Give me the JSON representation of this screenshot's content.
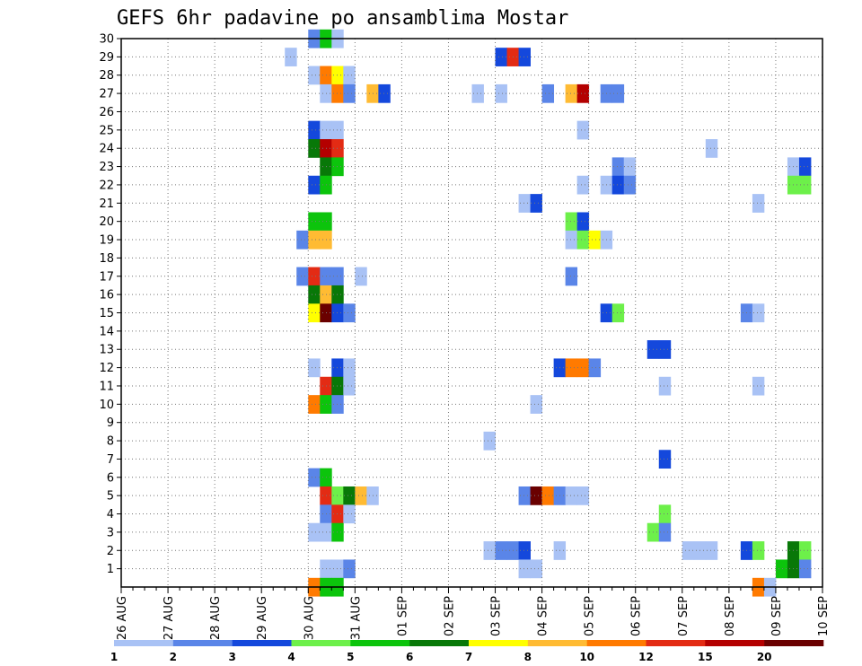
{
  "chart_data": {
    "type": "heatmap",
    "title": "GEFS 6hr padavine po ansamblima Mostar",
    "xlabel": "",
    "ylabel": "",
    "x_ticks": [
      "26 AUG",
      "27 AUG",
      "28 AUG",
      "29 AUG",
      "30 AUG",
      "31 AUG",
      "01 SEP",
      "02 SEP",
      "03 SEP",
      "04 SEP",
      "05 SEP",
      "06 SEP",
      "07 SEP",
      "08 SEP",
      "09 SEP",
      "10 SEP"
    ],
    "x_range": [
      "26 AUG 00Z",
      "10 SEP 00Z"
    ],
    "time_step_hours": 6,
    "y_ticks": [
      1,
      2,
      3,
      4,
      5,
      6,
      7,
      8,
      9,
      10,
      11,
      12,
      13,
      14,
      15,
      16,
      17,
      18,
      19,
      20,
      21,
      22,
      23,
      24,
      25,
      26,
      27,
      28,
      29,
      30
    ],
    "y_range": [
      0,
      30
    ],
    "grid": true,
    "legend_position": "bottom",
    "legend": {
      "labels": [
        "1",
        "2",
        "3",
        "4",
        "5",
        "6",
        "7",
        "8",
        "10",
        "12",
        "15",
        "20"
      ],
      "colors": [
        "#a9c2f5",
        "#5a85e8",
        "#1448dc",
        "#6df04a",
        "#0cc40c",
        "#087808",
        "#ffff00",
        "#ffbb33",
        "#ff7a00",
        "#e32b14",
        "#b40000",
        "#6a0000"
      ]
    },
    "cells": [
      [
        30,
        16,
        1
      ],
      [
        30,
        17,
        4
      ],
      [
        30,
        18,
        0
      ],
      [
        29,
        14,
        0
      ],
      [
        29,
        32,
        2
      ],
      [
        29,
        33,
        9
      ],
      [
        29,
        34,
        2
      ],
      [
        28,
        16,
        0
      ],
      [
        28,
        17,
        8
      ],
      [
        28,
        18,
        6
      ],
      [
        28,
        19,
        0
      ],
      [
        27,
        17,
        0
      ],
      [
        27,
        18,
        8
      ],
      [
        27,
        19,
        1
      ],
      [
        27,
        21,
        7
      ],
      [
        27,
        22,
        2
      ],
      [
        27,
        30,
        0
      ],
      [
        27,
        32,
        0
      ],
      [
        27,
        36,
        1
      ],
      [
        27,
        38,
        7
      ],
      [
        27,
        39,
        10
      ],
      [
        27,
        41,
        1
      ],
      [
        27,
        42,
        1
      ],
      [
        25,
        16,
        2
      ],
      [
        25,
        17,
        0
      ],
      [
        25,
        18,
        0
      ],
      [
        25,
        39,
        0
      ],
      [
        24,
        16,
        5
      ],
      [
        24,
        17,
        10
      ],
      [
        24,
        18,
        9
      ],
      [
        24,
        50,
        0
      ],
      [
        23,
        17,
        5
      ],
      [
        23,
        18,
        4
      ],
      [
        23,
        42,
        1
      ],
      [
        23,
        43,
        0
      ],
      [
        23,
        57,
        0
      ],
      [
        23,
        58,
        2
      ],
      [
        22,
        16,
        2
      ],
      [
        22,
        17,
        4
      ],
      [
        22,
        39,
        0
      ],
      [
        22,
        41,
        0
      ],
      [
        22,
        42,
        2
      ],
      [
        22,
        43,
        1
      ],
      [
        22,
        57,
        3
      ],
      [
        22,
        58,
        3
      ],
      [
        21,
        34,
        0
      ],
      [
        21,
        35,
        2
      ],
      [
        21,
        54,
        0
      ],
      [
        20,
        16,
        4
      ],
      [
        20,
        17,
        4
      ],
      [
        20,
        38,
        3
      ],
      [
        20,
        39,
        2
      ],
      [
        19,
        15,
        1
      ],
      [
        19,
        16,
        7
      ],
      [
        19,
        17,
        7
      ],
      [
        19,
        38,
        0
      ],
      [
        19,
        39,
        3
      ],
      [
        19,
        40,
        6
      ],
      [
        19,
        41,
        0
      ],
      [
        17,
        15,
        1
      ],
      [
        17,
        16,
        9
      ],
      [
        17,
        17,
        1
      ],
      [
        17,
        18,
        1
      ],
      [
        17,
        20,
        0
      ],
      [
        17,
        38,
        1
      ],
      [
        16,
        16,
        5
      ],
      [
        16,
        17,
        7
      ],
      [
        16,
        18,
        5
      ],
      [
        15,
        16,
        6
      ],
      [
        15,
        17,
        11
      ],
      [
        15,
        18,
        2
      ],
      [
        15,
        19,
        1
      ],
      [
        15,
        41,
        2
      ],
      [
        15,
        42,
        3
      ],
      [
        15,
        53,
        1
      ],
      [
        15,
        54,
        0
      ],
      [
        13,
        45,
        2
      ],
      [
        13,
        46,
        2
      ],
      [
        12,
        16,
        0
      ],
      [
        12,
        18,
        2
      ],
      [
        12,
        19,
        0
      ],
      [
        12,
        37,
        2
      ],
      [
        12,
        38,
        8
      ],
      [
        12,
        39,
        8
      ],
      [
        12,
        40,
        1
      ],
      [
        11,
        17,
        9
      ],
      [
        11,
        18,
        5
      ],
      [
        11,
        19,
        0
      ],
      [
        11,
        46,
        0
      ],
      [
        11,
        54,
        0
      ],
      [
        10,
        16,
        8
      ],
      [
        10,
        17,
        4
      ],
      [
        10,
        18,
        1
      ],
      [
        10,
        35,
        0
      ],
      [
        8,
        31,
        0
      ],
      [
        7,
        46,
        2
      ],
      [
        6,
        16,
        1
      ],
      [
        6,
        17,
        4
      ],
      [
        5,
        17,
        9
      ],
      [
        5,
        18,
        3
      ],
      [
        5,
        19,
        5
      ],
      [
        5,
        20,
        7
      ],
      [
        5,
        21,
        0
      ],
      [
        5,
        34,
        1
      ],
      [
        5,
        35,
        11
      ],
      [
        5,
        36,
        8
      ],
      [
        5,
        37,
        1
      ],
      [
        5,
        38,
        0
      ],
      [
        5,
        39,
        0
      ],
      [
        4,
        17,
        1
      ],
      [
        4,
        18,
        9
      ],
      [
        4,
        19,
        0
      ],
      [
        4,
        46,
        3
      ],
      [
        3,
        16,
        0
      ],
      [
        3,
        17,
        0
      ],
      [
        3,
        18,
        4
      ],
      [
        3,
        45,
        3
      ],
      [
        3,
        46,
        1
      ],
      [
        2,
        31,
        0
      ],
      [
        2,
        32,
        1
      ],
      [
        2,
        33,
        1
      ],
      [
        2,
        34,
        2
      ],
      [
        2,
        37,
        0
      ],
      [
        2,
        48,
        0
      ],
      [
        2,
        49,
        0
      ],
      [
        2,
        50,
        0
      ],
      [
        2,
        53,
        2
      ],
      [
        2,
        54,
        3
      ],
      [
        2,
        57,
        5
      ],
      [
        2,
        58,
        3
      ],
      [
        1,
        17,
        0
      ],
      [
        1,
        18,
        0
      ],
      [
        1,
        19,
        1
      ],
      [
        1,
        34,
        0
      ],
      [
        1,
        35,
        0
      ],
      [
        1,
        56,
        4
      ],
      [
        1,
        57,
        5
      ],
      [
        1,
        58,
        1
      ],
      [
        0,
        16,
        8
      ],
      [
        0,
        17,
        4
      ],
      [
        0,
        18,
        4
      ],
      [
        0,
        54,
        8
      ],
      [
        0,
        55,
        0
      ]
    ]
  }
}
